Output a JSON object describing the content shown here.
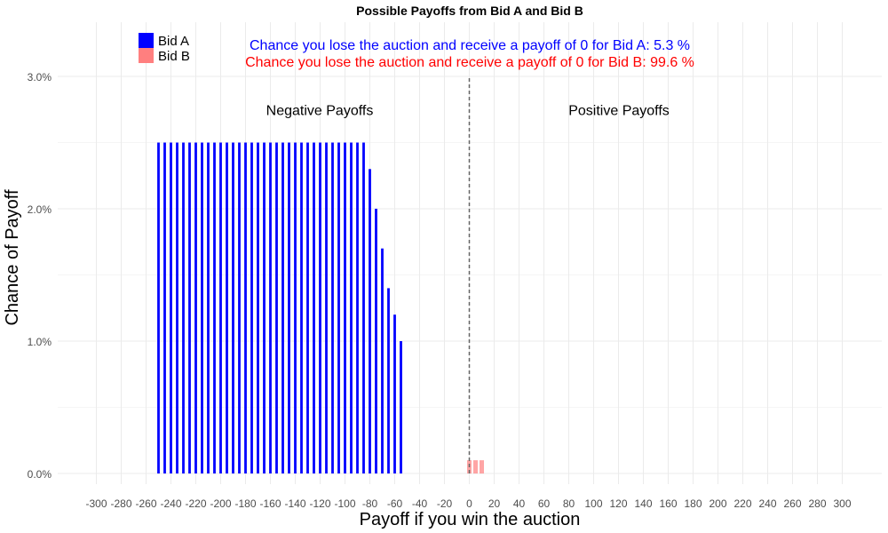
{
  "chart_data": {
    "type": "bar",
    "title": "Possible Payoffs from Bid A and Bid B",
    "xlabel": "Payoff if you win the auction",
    "ylabel": "Chance of Payoff",
    "xlim": [
      -310,
      310
    ],
    "ylim": [
      0,
      0.03
    ],
    "x_ticks": [
      -300,
      -280,
      -260,
      -240,
      -220,
      -200,
      -180,
      -160,
      -140,
      -120,
      -100,
      -80,
      -60,
      -40,
      -20,
      0,
      20,
      40,
      60,
      80,
      100,
      120,
      140,
      160,
      180,
      200,
      220,
      240,
      260,
      280,
      300
    ],
    "y_ticks": [
      {
        "value": 0.0,
        "label": "0.0%"
      },
      {
        "value": 0.01,
        "label": "1.0%"
      },
      {
        "value": 0.02,
        "label": "2.0%"
      },
      {
        "value": 0.03,
        "label": "3.0%"
      }
    ],
    "grid": true,
    "legend_position": "top-left",
    "reference_line": {
      "x": 0,
      "style": "dashed",
      "color": "#666666"
    },
    "region_labels": [
      {
        "text": "Negative Payoffs",
        "x": -120,
        "y": 0.0275
      },
      {
        "text": "Positive Payoffs",
        "x": 120,
        "y": 0.0275
      }
    ],
    "annotations": [
      {
        "text": "Chance you lose the auction and receive a payoff of 0 for Bid A:  5.3 %",
        "color": "#0000ff"
      },
      {
        "text": "Chance you lose the auction and receive a payoff of 0 for Bid B:  99.6 %",
        "color": "#ff0000"
      }
    ],
    "series": [
      {
        "name": "Bid A",
        "color": "#0000ff",
        "x": [
          -250,
          -245,
          -240,
          -235,
          -230,
          -225,
          -220,
          -215,
          -210,
          -205,
          -200,
          -195,
          -190,
          -185,
          -180,
          -175,
          -170,
          -165,
          -160,
          -155,
          -150,
          -145,
          -140,
          -135,
          -130,
          -125,
          -120,
          -115,
          -110,
          -105,
          -100,
          -95,
          -90,
          -85,
          -80,
          -75,
          -70,
          -65,
          -60,
          -55
        ],
        "values": [
          0.025,
          0.025,
          0.025,
          0.025,
          0.025,
          0.025,
          0.025,
          0.025,
          0.025,
          0.025,
          0.025,
          0.025,
          0.025,
          0.025,
          0.025,
          0.025,
          0.025,
          0.025,
          0.025,
          0.025,
          0.025,
          0.025,
          0.025,
          0.025,
          0.025,
          0.025,
          0.025,
          0.025,
          0.025,
          0.025,
          0.025,
          0.025,
          0.025,
          0.025,
          0.023,
          0.02,
          0.017,
          0.014,
          0.012,
          0.01
        ]
      },
      {
        "name": "Bid B",
        "color": "#ff7f7f",
        "x": [
          0,
          5,
          10
        ],
        "values": [
          0.001,
          0.001,
          0.001
        ]
      }
    ]
  }
}
